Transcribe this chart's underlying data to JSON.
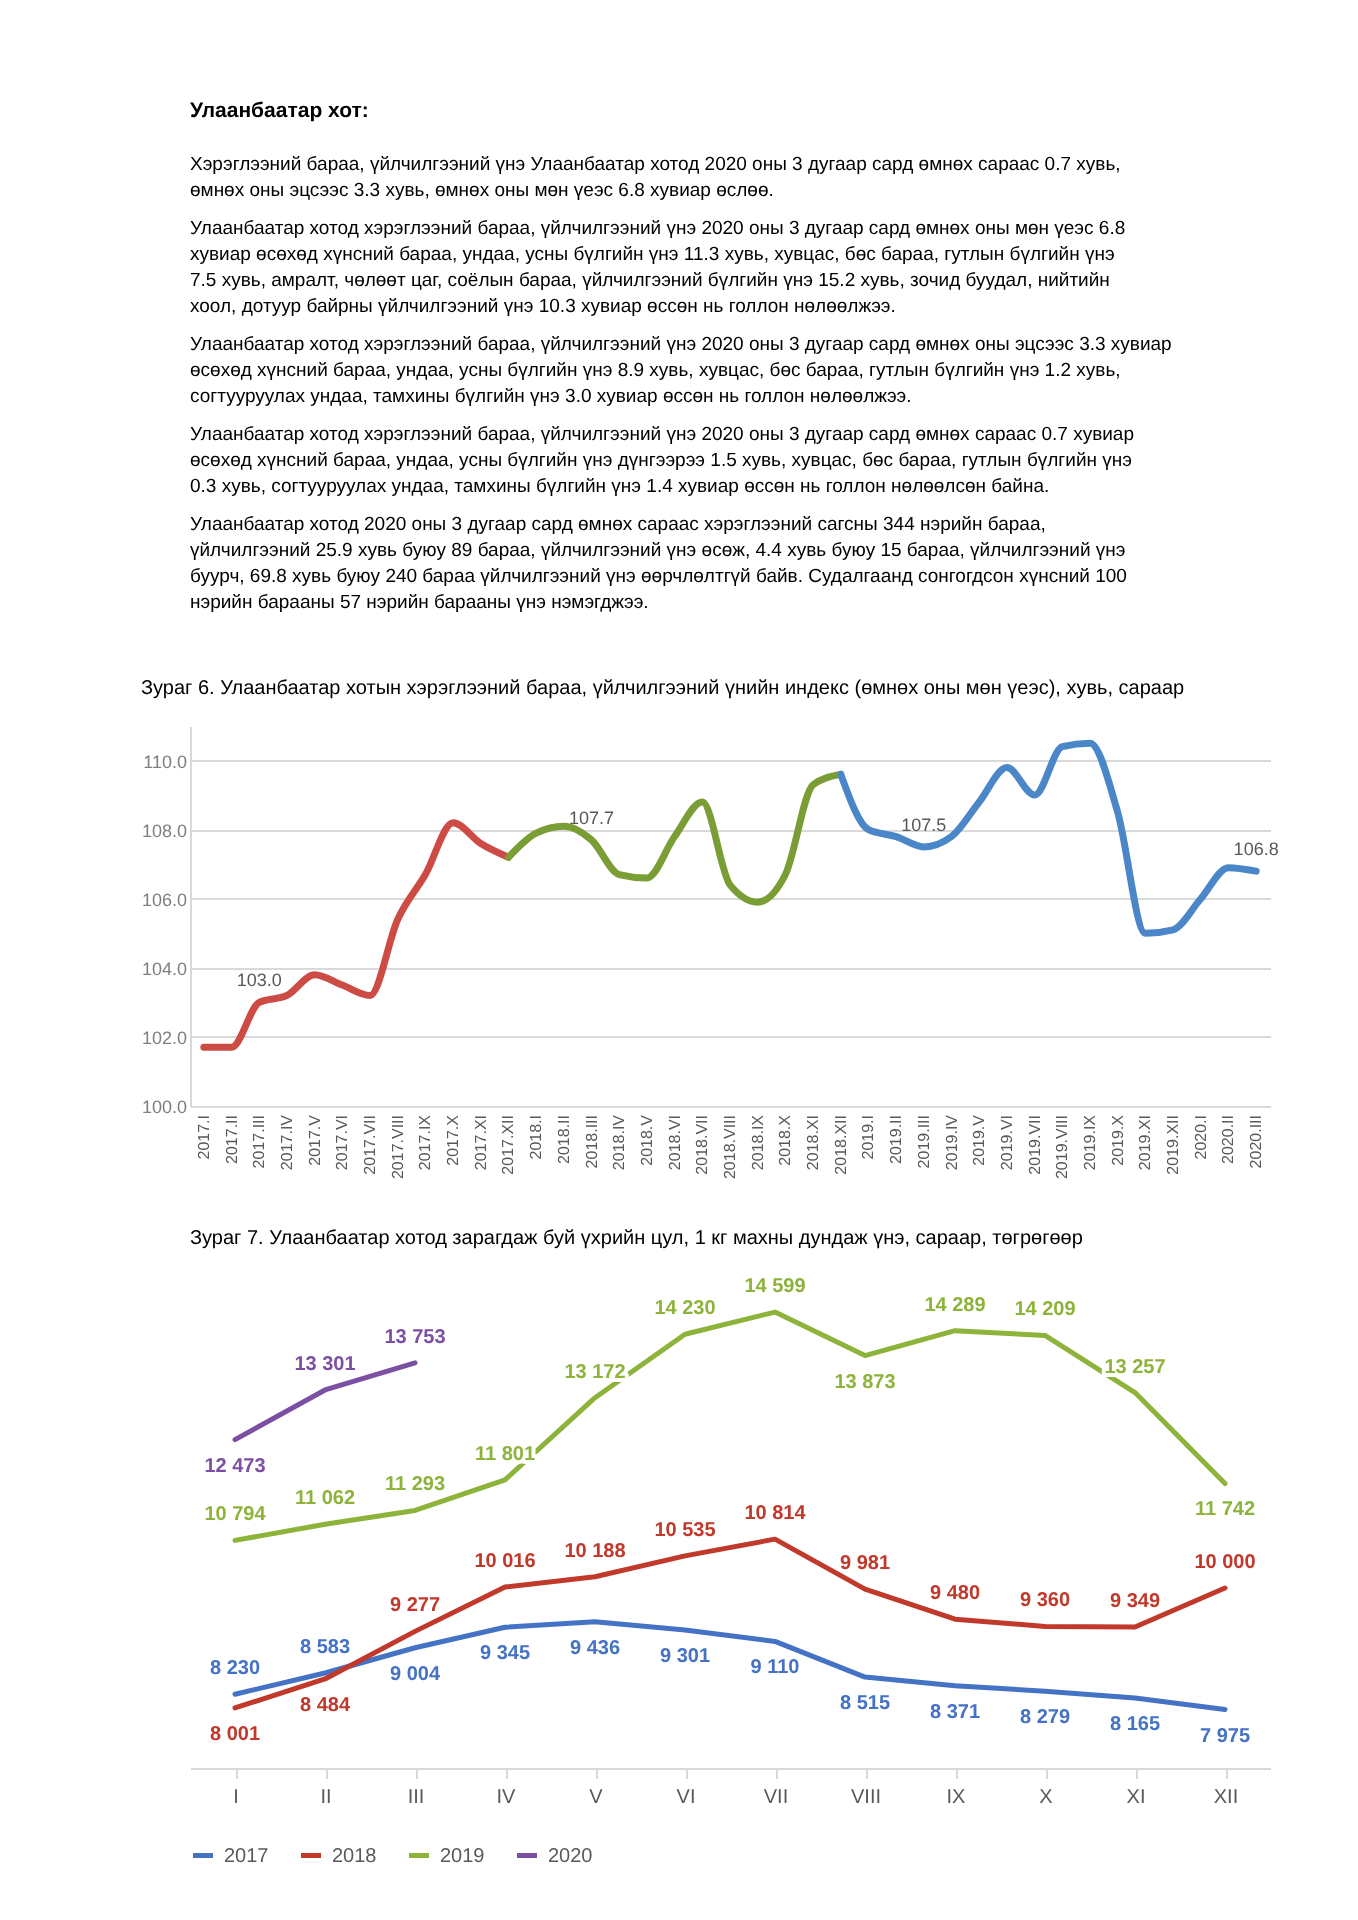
{
  "chart_data": [
    {
      "type": "other",
      "title": "Улаанбаатар хот:",
      "annotations": [
        "Хэрэглээний бараа, үйлчилгээний үнэ Улаанбаатар хотод 2020 оны 3 дугаар сард өмнөх сараас 0.7 хувь, өмнөх оны эцсээс 3.3 хувь,  өмнөх оны мөн үеэс 6.8 хувиар өслөө.",
        "Улаанбаатар хотод хэрэглээний бараа, үйлчилгээний үнэ 2020 оны 3 дугаар сард өмнөх оны мөн үеэс 6.8 хувиар өсөхөд хүнсний бараа, ундаа, усны бүлгийн үнэ 11.3 хувь, хувцас, бөс бараа, гутлын бүлгийн үнэ 7.5 хувь, амралт, чөлөөт цаг, соёлын бараа, үйлчилгээний бүлгийн үнэ 15.2 хувь, зочид буудал, нийтийн хоол, дотуур байрны үйлчилгээний үнэ 10.3 хувиар өссөн нь голлон нөлөөлжээ.",
        "Улаанбаатар хотод хэрэглээний бараа, үйлчилгээний үнэ 2020 оны 3 дугаар сард өмнөх оны эцсээс 3.3 хувиар өсөхөд хүнсний бараа, ундаа, усны бүлгийн үнэ 8.9 хувь, хувцас, бөс бараа, гутлын бүлгийн үнэ 1.2 хувь, согтууруулах ундаа, тамхины бүлгийн үнэ 3.0 хувиар өссөн нь голлон нөлөөлжээ.",
        "Улаанбаатар хотод хэрэглээний бараа, үйлчилгээний үнэ 2020 оны 3 дугаар сард өмнөх сараас 0.7 хувиар өсөхөд хүнсний бараа, ундаа, усны бүлгийн үнэ дүнгээрээ 1.5 хувь, хувцас, бөс бараа, гутлын бүлгийн үнэ 0.3 хувь, согтууруулах ундаа, тамхины бүлгийн үнэ 1.4 хувиар өссөн нь голлон нөлөөлсөн байна.",
        "Улаанбаатар  хотод  2020 оны 3 дугаар сард өмнөх сараас хэрэглээний сагсны 344 нэрийн бараа, үйлчилгээний 25.9 хувь буюу 89 бараа, үйлчилгээний үнэ өсөж, 4.4 хувь буюу 15 бараа, үйлчилгээний  үнэ буурч, 69.8 хувь буюу 240 бараа үйлчилгээний үнэ өөрчлөлтгүй байв. Судалгаанд сонгогдсон хүнсний 100 нэрийн барааны 57 нэрийн барааны үнэ нэмэгджээ."
      ]
    },
    {
      "type": "line",
      "title": "Зураг 6. Улаанбаатар хотын хэрэглээний бараа, үйлчилгээний үнийн индекс (өмнөх оны мөн үеэс), хувь, сараар",
      "categories": [
        "2017.I",
        "2017.II",
        "2017.III",
        "2017.IV",
        "2017.V",
        "2017.VI",
        "2017.VII",
        "2017.VIII",
        "2017.IX",
        "2017.X",
        "2017.XI",
        "2017.XII",
        "2018.I",
        "2018.II",
        "2018.III",
        "2018.IV",
        "2018.V",
        "2018.VI",
        "2018.VII",
        "2018.VIII",
        "2018.IX",
        "2018.X",
        "2018.XI",
        "2018.XII",
        "2019.I",
        "2019.II",
        "2019.III",
        "2019.IV",
        "2019.V",
        "2019.VI",
        "2019.VII",
        "2019.VIII",
        "2019.IX",
        "2019.X",
        "2019.XI",
        "2019.XII",
        "2020.I",
        "2020.II",
        "2020.III"
      ],
      "series": [
        {
          "color": "#cc4b44",
          "values": [
            101.7,
            101.7,
            103.0,
            103.2,
            103.8,
            103.5,
            103.2,
            105.4,
            106.7,
            108.2,
            107.6,
            107.2,
            null,
            null,
            null,
            null,
            null,
            null,
            null,
            null,
            null,
            null,
            null,
            null,
            null,
            null,
            null,
            null,
            null,
            null,
            null,
            null,
            null,
            null,
            null,
            null,
            null,
            null,
            null
          ]
        },
        {
          "color": "#7a9e35",
          "values": [
            null,
            null,
            null,
            null,
            null,
            null,
            null,
            null,
            null,
            null,
            null,
            107.2,
            107.9,
            108.1,
            107.7,
            106.7,
            106.6,
            107.8,
            108.8,
            106.4,
            105.9,
            106.7,
            109.3,
            109.6,
            null,
            null,
            null,
            null,
            null,
            null,
            null,
            null,
            null,
            null,
            null,
            null,
            null,
            null,
            null
          ]
        },
        {
          "color": "#4a86c8",
          "values": [
            null,
            null,
            null,
            null,
            null,
            null,
            null,
            null,
            null,
            null,
            null,
            null,
            null,
            null,
            null,
            null,
            null,
            null,
            null,
            null,
            null,
            null,
            null,
            109.6,
            108.0,
            107.8,
            107.5,
            107.8,
            108.8,
            109.8,
            109.0,
            110.4,
            110.5,
            108.5,
            105.0,
            105.1,
            106.0,
            106.9,
            106.8
          ]
        }
      ],
      "ylim": [
        100,
        111
      ],
      "yticks": [
        {
          "value": 100,
          "label": "100.0"
        },
        {
          "value": 102,
          "label": "102.0"
        },
        {
          "value": 104,
          "label": "104.0"
        },
        {
          "value": 106,
          "label": "106.0"
        },
        {
          "value": 108,
          "label": "108.0"
        },
        {
          "value": 110,
          "label": "110.0"
        }
      ],
      "grid": "y",
      "annotations": [
        {
          "text": "103.0",
          "x": "2017.III",
          "y": 103.0
        },
        {
          "text": "107.7",
          "x": "2018.III",
          "y": 107.7
        },
        {
          "text": "107.5",
          "x": "2019.III",
          "y": 107.5
        },
        {
          "text": "106.8",
          "x": "2020.III",
          "y": 106.8
        }
      ]
    },
    {
      "type": "line",
      "title": "Зураг 7. Улаанбаатар хотод зарагдаж буй үхрийн цул, 1 кг махны дундаж үнэ, сараар, төгрөгөөр",
      "categories": [
        "I",
        "II",
        "III",
        "IV",
        "V",
        "VI",
        "VII",
        "VIII",
        "IX",
        "X",
        "XI",
        "XII"
      ],
      "series": [
        {
          "name": "2017",
          "color": "#4472c4",
          "values": [
            8230,
            8583,
            9004,
            9345,
            9436,
            9301,
            9110,
            8515,
            8371,
            8279,
            8165,
            7975
          ]
        },
        {
          "name": "2018",
          "color": "#c0392b",
          "values": [
            8001,
            8484,
            9277,
            10016,
            10188,
            10535,
            10814,
            9981,
            9480,
            9360,
            9349,
            10000
          ]
        },
        {
          "name": "2019",
          "color": "#8db33a",
          "values": [
            10794,
            11062,
            11293,
            11801,
            13172,
            14230,
            14599,
            13873,
            14289,
            14209,
            13257,
            11742
          ]
        },
        {
          "name": "2020",
          "color": "#7b4fa3",
          "values": [
            12473,
            13301,
            13753,
            null,
            null,
            null,
            null,
            null,
            null,
            null,
            null,
            null
          ]
        }
      ],
      "data_labels": true,
      "legend": "bottom",
      "grid": false
    }
  ]
}
